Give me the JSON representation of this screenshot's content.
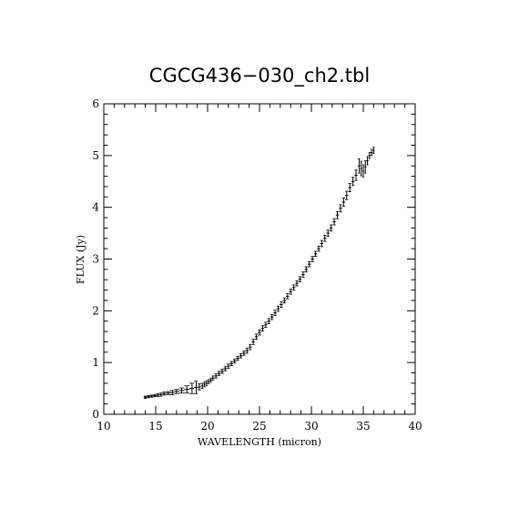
{
  "chart_data": {
    "type": "scatter",
    "title": "CGCG436−030_ch2.tbl",
    "xlabel": "WAVELENGTH (micron)",
    "ylabel": "FLUX (Jy)",
    "xlim": [
      10,
      40
    ],
    "ylim": [
      0,
      6
    ],
    "xticks": [
      "10",
      "15",
      "20",
      "25",
      "30",
      "35",
      "40"
    ],
    "yticks": [
      "0",
      "1",
      "2",
      "3",
      "4",
      "5",
      "6"
    ],
    "grid": false,
    "error_bars": true,
    "series": [
      {
        "x": [
          14.0,
          14.3,
          14.6,
          14.9,
          15.2,
          15.5,
          15.8,
          16.2,
          16.6,
          17.0,
          17.5,
          18.0,
          18.5,
          18.9,
          19.2,
          19.5,
          19.7,
          19.9,
          20.1,
          20.3,
          20.5,
          20.8,
          21.1,
          21.4,
          21.7,
          22.0,
          22.3,
          22.6,
          22.9,
          23.2,
          23.5,
          23.8,
          24.1,
          24.4,
          24.7,
          25.0,
          25.3,
          25.6,
          25.9,
          26.2,
          26.5,
          26.8,
          27.1,
          27.4,
          27.7,
          28.0,
          28.3,
          28.6,
          28.9,
          29.2,
          29.5,
          29.8,
          30.1,
          30.4,
          30.7,
          31.0,
          31.3,
          31.6,
          31.9,
          32.2,
          32.5,
          32.8,
          33.1,
          33.4,
          33.7,
          34.0,
          34.3,
          34.6,
          34.8,
          35.0,
          35.2,
          35.4,
          35.6,
          35.8,
          36.0
        ],
        "y": [
          0.33,
          0.34,
          0.35,
          0.36,
          0.37,
          0.38,
          0.4,
          0.41,
          0.42,
          0.44,
          0.46,
          0.48,
          0.5,
          0.52,
          0.53,
          0.55,
          0.58,
          0.6,
          0.63,
          0.66,
          0.7,
          0.74,
          0.79,
          0.83,
          0.88,
          0.93,
          0.98,
          1.03,
          1.08,
          1.13,
          1.18,
          1.23,
          1.3,
          1.4,
          1.5,
          1.58,
          1.66,
          1.73,
          1.8,
          1.88,
          1.96,
          2.04,
          2.12,
          2.2,
          2.28,
          2.37,
          2.45,
          2.53,
          2.61,
          2.7,
          2.8,
          2.9,
          3.0,
          3.1,
          3.2,
          3.3,
          3.4,
          3.5,
          3.6,
          3.72,
          3.85,
          3.98,
          4.1,
          4.23,
          4.38,
          4.5,
          4.62,
          4.8,
          4.75,
          4.7,
          4.78,
          4.9,
          5.0,
          5.06,
          5.1
        ],
        "yerr": [
          0.02,
          0.02,
          0.02,
          0.02,
          0.03,
          0.03,
          0.03,
          0.03,
          0.04,
          0.04,
          0.05,
          0.07,
          0.1,
          0.12,
          0.06,
          0.05,
          0.05,
          0.05,
          0.04,
          0.04,
          0.04,
          0.04,
          0.04,
          0.04,
          0.04,
          0.04,
          0.04,
          0.04,
          0.04,
          0.04,
          0.04,
          0.05,
          0.05,
          0.05,
          0.05,
          0.05,
          0.05,
          0.05,
          0.05,
          0.05,
          0.05,
          0.05,
          0.05,
          0.05,
          0.05,
          0.05,
          0.05,
          0.05,
          0.05,
          0.05,
          0.05,
          0.05,
          0.05,
          0.05,
          0.05,
          0.06,
          0.06,
          0.06,
          0.06,
          0.06,
          0.07,
          0.07,
          0.08,
          0.08,
          0.08,
          0.08,
          0.1,
          0.14,
          0.14,
          0.12,
          0.12,
          0.08,
          0.06,
          0.06,
          0.06
        ]
      }
    ]
  }
}
